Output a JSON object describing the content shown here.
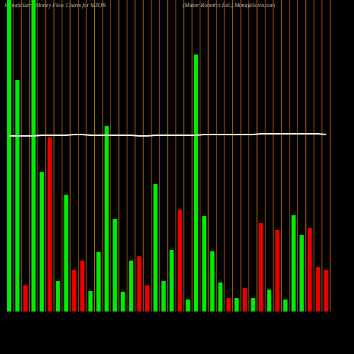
{
  "chart_data": {
    "type": "bar",
    "title": "MunafaSutra  Money Flow  Charts for MZOR",
    "subtitle": "(Mazor Robotics Ltd.) MunafaSutra.com",
    "categories": [
      null,
      null,
      null,
      null,
      null,
      null,
      null,
      null,
      null,
      null,
      null,
      null,
      null,
      null,
      null,
      null,
      null,
      null,
      null,
      null,
      null,
      null,
      null,
      null,
      null,
      null,
      null,
      null,
      null,
      null,
      null,
      null,
      null,
      null,
      null,
      null,
      null,
      null,
      null,
      null
    ],
    "values": [
      440,
      327,
      37,
      440,
      197,
      246,
      43,
      165,
      59,
      72,
      29,
      84,
      262,
      131,
      28,
      72,
      78,
      37,
      180,
      43,
      87,
      144,
      17,
      363,
      135,
      85,
      41,
      19,
      19,
      33,
      19,
      125,
      31,
      115,
      17,
      136,
      108,
      118,
      63,
      59
    ],
    "bar_colors": [
      "#00ee00",
      "#00ee00",
      "#ee0000",
      "#00ee00",
      "#00ee00",
      "#ee0000",
      "#00ee00",
      "#00ee00",
      "#ee0000",
      "#ee0000",
      "#00ee00",
      "#00ee00",
      "#00ee00",
      "#00ee00",
      "#00ee00",
      "#00ee00",
      "#ee0000",
      "#ee0000",
      "#00ee00",
      "#00ee00",
      "#00ee00",
      "#ee0000",
      "#00ee00",
      "#00ee00",
      "#00ee00",
      "#00ee00",
      "#00ee00",
      "#ee0000",
      "#00ee00",
      "#ee0000",
      "#00ee00",
      "#ee0000",
      "#00ee00",
      "#ee0000",
      "#00ee00",
      "#00ee00",
      "#00ee00",
      "#ee0000",
      "#ee0000",
      "#ee0000"
    ],
    "line": {
      "color": "#ffffff",
      "values": [
        248,
        248,
        248,
        248,
        249,
        249,
        249,
        249,
        250,
        250,
        249,
        249,
        249,
        249,
        249,
        249,
        248,
        248,
        249,
        249,
        249,
        249,
        249,
        249,
        250,
        250,
        250,
        250,
        250,
        250,
        250,
        251,
        251,
        251,
        251,
        251,
        251,
        251,
        251,
        250
      ]
    },
    "ylim": [
      0,
      440
    ],
    "grid": true,
    "grid_color": "#b86a00"
  }
}
